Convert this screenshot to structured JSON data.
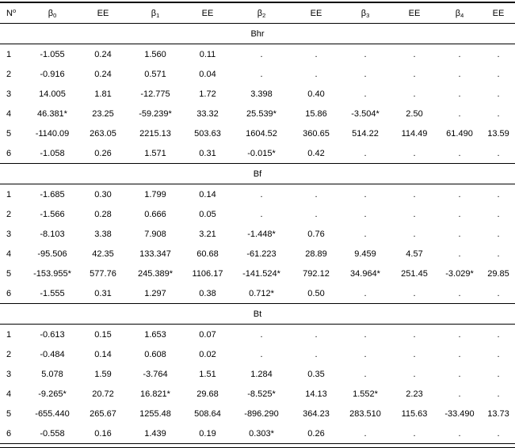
{
  "page": {
    "background": "#ffffff",
    "text_color": "#000000",
    "rule_color": "#000000"
  },
  "table": {
    "columns": [
      {
        "base": "N",
        "sup": "o"
      },
      {
        "base": "β",
        "sub": "0"
      },
      {
        "base": "EE"
      },
      {
        "base": "β",
        "sub": "1"
      },
      {
        "base": "EE"
      },
      {
        "base": "β",
        "sub": "2"
      },
      {
        "base": "EE"
      },
      {
        "base": "β",
        "sub": "3"
      },
      {
        "base": "EE"
      },
      {
        "base": "β",
        "sub": "4"
      },
      {
        "base": "EE"
      }
    ],
    "sections": [
      {
        "name": "Bhr",
        "rows": [
          [
            "1",
            "-1.055",
            "0.24",
            "1.560",
            "0.11",
            ".",
            ".",
            ".",
            ".",
            ".",
            "."
          ],
          [
            "2",
            "-0.916",
            "0.24",
            "0.571",
            "0.04",
            ".",
            ".",
            ".",
            ".",
            ".",
            "."
          ],
          [
            "3",
            "14.005",
            "1.81",
            "-12.775",
            "1.72",
            "3.398",
            "0.40",
            ".",
            ".",
            ".",
            "."
          ],
          [
            "4",
            "46.381*",
            "23.25",
            "-59.239*",
            "33.32",
            "25.539*",
            "15.86",
            "-3.504*",
            "2.50",
            ".",
            "."
          ],
          [
            "5",
            "-1140.09",
            "263.05",
            "2215.13",
            "503.63",
            "1604.52",
            "360.65",
            "514.22",
            "114.49",
            "61.490",
            "13.59"
          ],
          [
            "6",
            "-1.058",
            "0.26",
            "1.571",
            "0.31",
            "-0.015*",
            "0.42",
            ".",
            ".",
            ".",
            "."
          ]
        ]
      },
      {
        "name": "Bf",
        "rows": [
          [
            "1",
            "-1.685",
            "0.30",
            "1.799",
            "0.14",
            ".",
            ".",
            ".",
            ".",
            ".",
            "."
          ],
          [
            "2",
            "-1.566",
            "0.28",
            "0.666",
            "0.05",
            ".",
            ".",
            ".",
            ".",
            ".",
            "."
          ],
          [
            "3",
            "-8.103",
            "3.38",
            "7.908",
            "3.21",
            "-1.448*",
            "0.76",
            ".",
            ".",
            ".",
            "."
          ],
          [
            "4",
            "-95.506",
            "42.35",
            "133.347",
            "60.68",
            "-61.223",
            "28.89",
            "9.459",
            "4.57",
            ".",
            "."
          ],
          [
            "5",
            "-153.955*",
            "577.76",
            "245.389*",
            "1106.17",
            "-141.524*",
            "792.12",
            "34.964*",
            "251.45",
            "-3.029*",
            "29.85"
          ],
          [
            "6",
            "-1.555",
            "0.31",
            "1.297",
            "0.38",
            "0.712*",
            "0.50",
            ".",
            ".",
            ".",
            "."
          ]
        ]
      },
      {
        "name": "Bt",
        "rows": [
          [
            "1",
            "-0.613",
            "0.15",
            "1.653",
            "0.07",
            ".",
            ".",
            ".",
            ".",
            ".",
            "."
          ],
          [
            "2",
            "-0.484",
            "0.14",
            "0.608",
            "0.02",
            ".",
            ".",
            ".",
            ".",
            ".",
            "."
          ],
          [
            "3",
            "5.078",
            "1.59",
            "-3.764",
            "1.51",
            "1.284",
            "0.35",
            ".",
            ".",
            ".",
            "."
          ],
          [
            "4",
            "-9.265*",
            "20.72",
            "16.821*",
            "29.68",
            "-8.525*",
            "14.13",
            "1.552*",
            "2.23",
            ".",
            "."
          ],
          [
            "5",
            "-655.440",
            "265.67",
            "1255.48",
            "508.64",
            "-896.290",
            "364.23",
            "283.510",
            "115.63",
            "-33.490",
            "13.73"
          ],
          [
            "6",
            "-0.558",
            "0.16",
            "1.439",
            "0.19",
            "0.303*",
            "0.26",
            ".",
            ".",
            ".",
            "."
          ]
        ]
      }
    ]
  }
}
